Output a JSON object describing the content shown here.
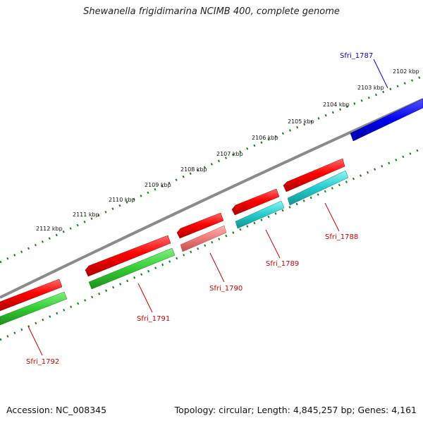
{
  "title": "Shewanella frigidimarina NCIMB 400, complete genome",
  "footer": {
    "accession": "Accession: NC_008345",
    "topology": "Topology: circular; Length: 4,845,257 bp; Genes: 4,161"
  },
  "ticks": [
    "2102 kbp",
    "2103 kbp",
    "2104 kbp",
    "2105 kbp",
    "2106 kbp",
    "2107 kbp",
    "2108 kbp",
    "2109 kbp",
    "2110 kbp",
    "2111 kbp",
    "2112 kbp"
  ],
  "genes": [
    {
      "name": "Sfri_1787",
      "color": "#0000cc"
    },
    {
      "name": "Sfri_1788",
      "color": "#cc0000"
    },
    {
      "name": "Sfri_1789",
      "color": "#cc0000"
    },
    {
      "name": "Sfri_1790",
      "color": "#cc0000"
    },
    {
      "name": "Sfri_1791",
      "color": "#cc0000"
    },
    {
      "name": "Sfri_1792",
      "color": "#cc0000"
    }
  ],
  "colors": {
    "backbone": "#888888",
    "tick_dots": "#1a7a1a",
    "cds": "#ff0000",
    "cds_forward": "#0000ff",
    "gene_green": "#33cc33",
    "gene_cyan": "#22cccc",
    "gene_pink": "#f07878"
  }
}
